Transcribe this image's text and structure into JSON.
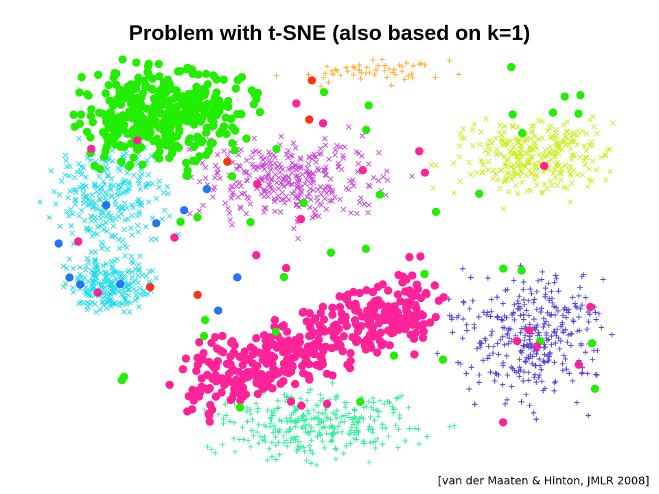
{
  "title": "Problem with t-SNE (also based on k=1)",
  "citation": "[van der Maaten & Hinton, JMLR 2008]"
}
